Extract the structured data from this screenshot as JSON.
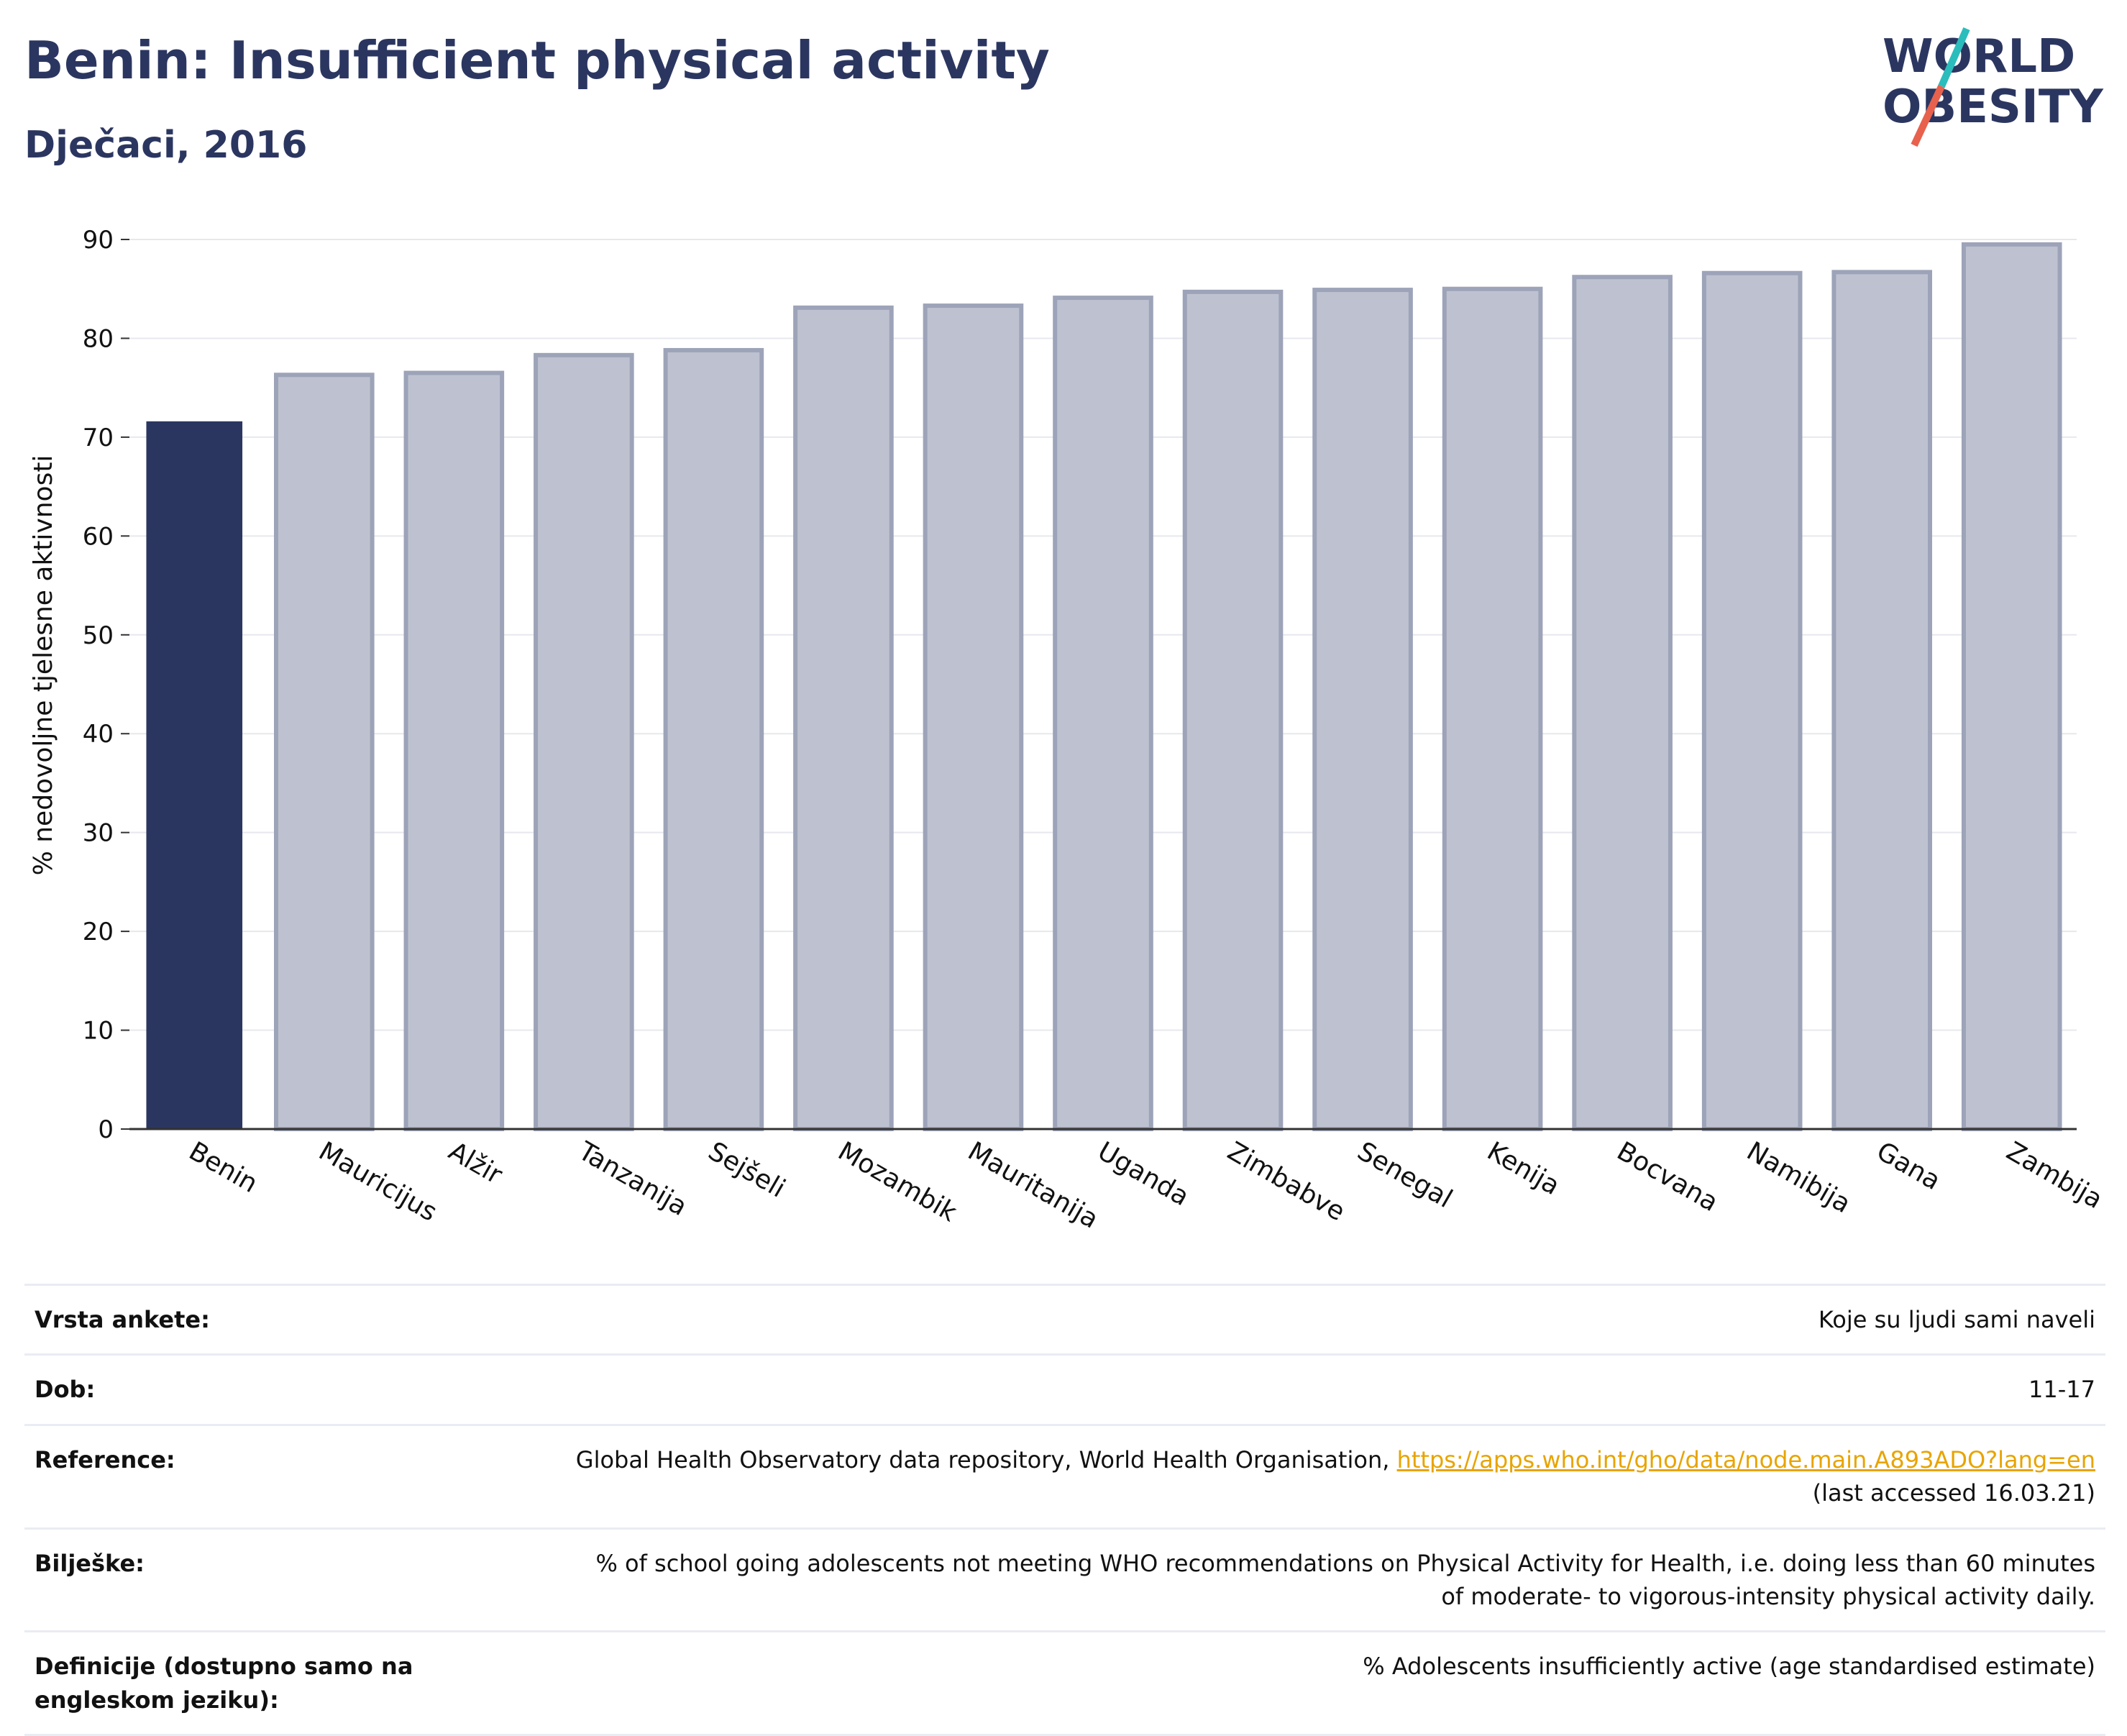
{
  "header": {
    "title": "Benin: Insufficient physical activity",
    "subtitle": "Dječaci, 2016"
  },
  "logo": {
    "line1": "WORLD",
    "line2": "OBESITY",
    "colors": {
      "text": "#2b3660",
      "slash_top": "#2bbcbc",
      "slash_bottom": "#e8614d"
    }
  },
  "colors": {
    "highlight_bar": "#2b3660",
    "other_bar_fill": "#bec2d0",
    "other_bar_stroke": "#9da3b8",
    "grid": "#e6e8ee",
    "axis": "#333333"
  },
  "chart_data": {
    "type": "bar",
    "title": "Benin: Insufficient physical activity",
    "subtitle": "Dječaci, 2016",
    "xlabel": "",
    "ylabel": "% nedovoljne tjelesne aktivnosti",
    "ylim": [
      0,
      90
    ],
    "yticks": [
      0,
      10,
      20,
      30,
      40,
      50,
      60,
      70,
      80,
      90
    ],
    "grid": true,
    "highlight": "Benin",
    "categories": [
      "Benin",
      "Mauricijus",
      "Alžir",
      "Tanzanija",
      "Sejšeli",
      "Mozambik",
      "Mauritanija",
      "Uganda",
      "Zimbabve",
      "Senegal",
      "Kenija",
      "Bocvana",
      "Namibija",
      "Gana",
      "Zambija"
    ],
    "values": [
      71.6,
      76.3,
      76.5,
      78.3,
      78.8,
      83.1,
      83.3,
      84.1,
      84.7,
      84.9,
      85.0,
      86.2,
      86.6,
      86.7,
      89.5
    ]
  },
  "info": [
    {
      "key": "Vrsta ankete:",
      "value": "Koje su ljudi sami naveli"
    },
    {
      "key": "Dob:",
      "value": "11-17"
    },
    {
      "key": "Reference:",
      "value": "Global Health Observatory data repository, World Health Organisation, ",
      "link": "https://apps.who.int/gho/data/node.main.A893ADO?lang=en",
      "value2": "(last accessed 16.03.21)"
    },
    {
      "key": "Bilješke:",
      "value": "% of school going adolescents not meeting WHO recommendations on Physical Activity for Health, i.e. doing less than 60 minutes of moderate- to vigorous-intensity physical activity daily."
    },
    {
      "key": "Definicije (dostupno samo na engleskom jeziku):",
      "value": "% Adolescents insufficiently active (age standardised estimate)"
    }
  ]
}
